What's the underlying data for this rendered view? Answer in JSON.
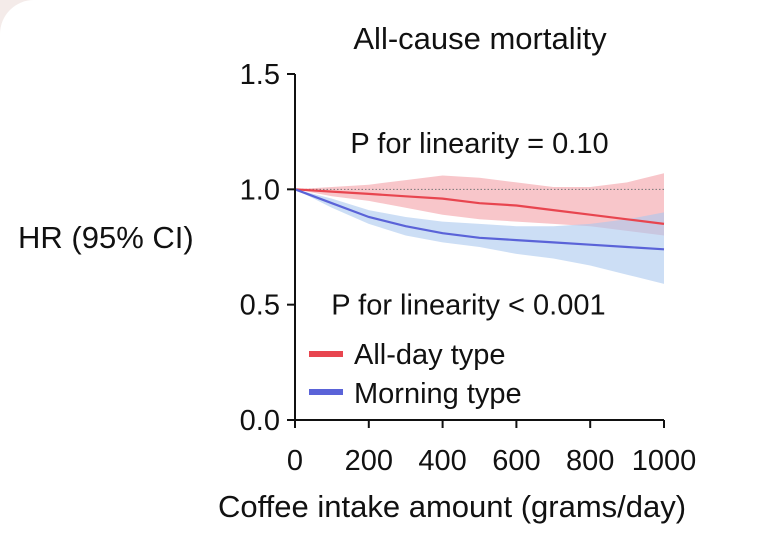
{
  "colors": {
    "all_day": "#e8454f",
    "all_day_ci": "#f6b3b8",
    "morning": "#5a63d8",
    "morning_ci": "#aac8ee",
    "background": "#f4ebe9"
  },
  "chart_data": {
    "type": "line",
    "title": "All-cause mortality",
    "xlabel": "Coffee intake amount (grams/day)",
    "ylabel": "HR (95% CI)",
    "xlim": [
      0,
      1000
    ],
    "ylim": [
      0,
      1.5
    ],
    "xticks": [
      "0",
      "200",
      "400",
      "600",
      "800",
      "1000"
    ],
    "yticks": [
      "0.0",
      "0.5",
      "1.0",
      "1.5"
    ],
    "xtick_values": [
      0,
      200,
      400,
      600,
      800,
      1000
    ],
    "ytick_values": [
      0,
      0.5,
      1.0,
      1.5
    ],
    "reference_line": 1.0,
    "grid": false,
    "legend_position": "lower-left",
    "annotations": [
      {
        "text": "P for linearity = 0.10",
        "x": 500,
        "y": 1.2
      },
      {
        "text": "P for linearity < 0.001",
        "x": 470,
        "y": 0.5
      }
    ],
    "series": [
      {
        "name": "All-day type",
        "color_key": "all_day",
        "ci_color_key": "all_day_ci",
        "x": [
          0,
          100,
          200,
          300,
          400,
          500,
          600,
          700,
          800,
          900,
          1000
        ],
        "y": [
          1.0,
          0.99,
          0.98,
          0.97,
          0.96,
          0.94,
          0.93,
          0.91,
          0.89,
          0.87,
          0.85
        ],
        "lower": [
          1.0,
          0.97,
          0.95,
          0.92,
          0.89,
          0.87,
          0.86,
          0.85,
          0.84,
          0.82,
          0.8
        ],
        "upper": [
          1.0,
          1.01,
          1.02,
          1.04,
          1.06,
          1.05,
          1.03,
          1.01,
          1.01,
          1.03,
          1.07
        ]
      },
      {
        "name": "Morning type",
        "color_key": "morning",
        "ci_color_key": "morning_ci",
        "x": [
          0,
          100,
          200,
          300,
          400,
          500,
          600,
          700,
          800,
          900,
          1000
        ],
        "y": [
          1.0,
          0.94,
          0.88,
          0.84,
          0.81,
          0.79,
          0.78,
          0.77,
          0.76,
          0.75,
          0.74
        ],
        "lower": [
          1.0,
          0.92,
          0.85,
          0.8,
          0.77,
          0.75,
          0.72,
          0.7,
          0.67,
          0.63,
          0.59
        ],
        "upper": [
          1.0,
          0.96,
          0.91,
          0.88,
          0.86,
          0.85,
          0.84,
          0.84,
          0.85,
          0.87,
          0.9
        ]
      }
    ]
  }
}
